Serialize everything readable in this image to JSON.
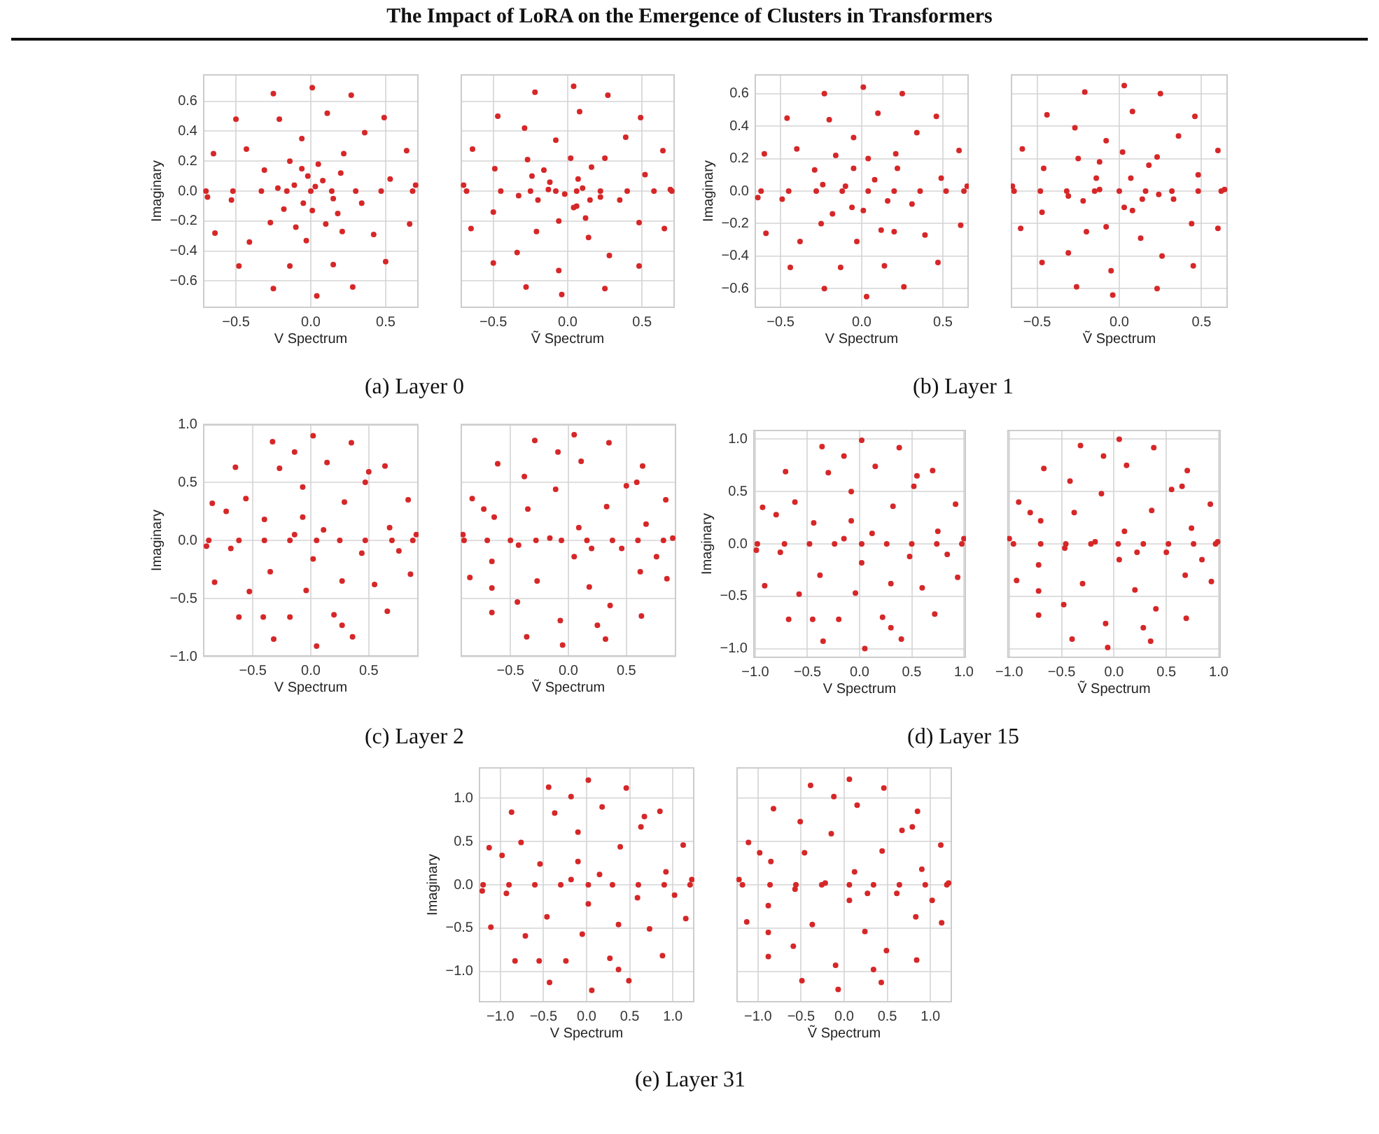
{
  "chart_data": [
    {
      "type": "scatter",
      "title": "The Impact of LoRA on the Emergence of Clusters in Transformers",
      "xlabel": "V Spectrum",
      "ylabel": "Imaginary",
      "annotations": [
        "(a) Layer 0"
      ],
      "color": "#d62728",
      "marker": "circle",
      "grid": true,
      "xlim": [
        -0.72,
        0.72
      ],
      "ylim": [
        -0.78,
        0.78
      ],
      "xticks": [
        {
          "value": -0.5,
          "label": "−0.5"
        },
        {
          "value": 0,
          "label": "0.0"
        },
        {
          "value": 0.5,
          "label": "0.5"
        }
      ],
      "yticks": [
        {
          "value": -0.6,
          "label": "−0.6"
        },
        {
          "value": -0.4,
          "label": "−0.4"
        },
        {
          "value": -0.2,
          "label": "−0.2"
        },
        {
          "value": 0,
          "label": "0.0"
        },
        0.2,
        0.4,
        0.6
      ],
      "x": [
        0.7,
        0.64,
        0.49,
        0.27,
        0.01,
        -0.25,
        -0.5,
        -0.65,
        -0.69,
        -0.64,
        -0.48,
        -0.25,
        0.04,
        0.28,
        0.5,
        0.66,
        0.53,
        0.36,
        0.11,
        -0.21,
        -0.43,
        -0.53,
        -0.41,
        -0.14,
        0.15,
        0.42,
        0.34,
        0.22,
        -0.06,
        -0.31,
        -0.27,
        -0.03,
        0.21,
        0.08,
        -0.11,
        0.01,
        -0.06,
        0.15,
        -0.05,
        0.05,
        -0.18,
        0.2,
        -0.14,
        0.1,
        -0.22,
        0.03,
        0.18,
        -0.02,
        -0.1,
        -0.7,
        -0.52,
        -0.33,
        -0.16,
        0.0,
        0.14,
        0.3,
        0.47,
        0.68
      ],
      "values": [
        0.04,
        0.27,
        0.49,
        0.64,
        0.69,
        0.65,
        0.48,
        0.25,
        -0.04,
        -0.28,
        -0.5,
        -0.65,
        -0.7,
        -0.64,
        -0.47,
        -0.22,
        0.08,
        0.39,
        0.52,
        0.48,
        0.28,
        -0.06,
        -0.34,
        -0.5,
        -0.49,
        -0.29,
        -0.08,
        0.25,
        0.35,
        0.14,
        -0.21,
        -0.33,
        -0.27,
        0.07,
        0.04,
        -0.13,
        0.15,
        -0.05,
        -0.08,
        0.18,
        -0.12,
        0.12,
        0.2,
        -0.22,
        0.02,
        0.03,
        -0.15,
        0.1,
        -0.24,
        0,
        0,
        0,
        0,
        0,
        0,
        0,
        0,
        0
      ]
    },
    {
      "type": "scatter",
      "xlabel": "Ṽ Spectrum",
      "tick_labels": "x",
      "color": "#d62728",
      "marker": "circle",
      "grid": true,
      "xlim": [
        -0.72,
        0.72
      ],
      "ylim": [
        -0.78,
        0.78
      ],
      "xticks": [
        {
          "value": -0.5,
          "label": "−0.5"
        },
        {
          "value": 0,
          "label": "0.0"
        },
        {
          "value": 0.5,
          "label": "0.5"
        }
      ],
      "yticks": [
        -0.6,
        -0.4,
        -0.2,
        0,
        0.2,
        0.4,
        0.6
      ],
      "x": [
        0.04,
        0.27,
        0.49,
        0.64,
        0.69,
        0.65,
        0.48,
        0.25,
        -0.04,
        -0.28,
        -0.5,
        -0.65,
        -0.7,
        -0.64,
        -0.47,
        -0.22,
        0.08,
        0.39,
        0.52,
        0.48,
        0.28,
        -0.06,
        -0.34,
        -0.5,
        -0.49,
        -0.29,
        -0.08,
        0.25,
        0.35,
        0.14,
        -0.21,
        -0.33,
        -0.27,
        0.07,
        0.04,
        -0.13,
        0.15,
        -0.12,
        0.06,
        0.16,
        -0.2,
        0.02,
        -0.06,
        0.22,
        -0.16,
        0.1,
        -0.02,
        0.12,
        -0.24,
        -0.68,
        -0.45,
        -0.25,
        -0.08,
        0.06,
        0.22,
        0.4,
        0.58,
        0.7
      ],
      "values": [
        0.7,
        0.64,
        0.49,
        0.27,
        0.01,
        -0.25,
        -0.5,
        -0.65,
        -0.69,
        -0.64,
        -0.48,
        -0.25,
        0.04,
        0.28,
        0.5,
        0.66,
        0.53,
        0.36,
        0.11,
        -0.21,
        -0.43,
        -0.53,
        -0.41,
        -0.14,
        0.15,
        0.42,
        0.34,
        0.22,
        -0.06,
        -0.31,
        -0.27,
        -0.03,
        0.21,
        0.08,
        -0.11,
        0.01,
        -0.06,
        0.06,
        -0.1,
        0.16,
        -0.06,
        0.22,
        -0.2,
        -0.04,
        0.14,
        0.02,
        -0.02,
        -0.18,
        0.1,
        0,
        0,
        0,
        0,
        0,
        0,
        0,
        0,
        0
      ]
    },
    {
      "type": "scatter",
      "xlabel": "V Spectrum",
      "ylabel": "Imaginary",
      "annotations": [
        "(b) Layer 1"
      ],
      "color": "#d62728",
      "marker": "circle",
      "grid": true,
      "xlim": [
        -0.66,
        0.66
      ],
      "ylim": [
        -0.72,
        0.72
      ],
      "xticks": [
        {
          "value": -0.5,
          "label": "−0.5"
        },
        {
          "value": 0,
          "label": "0.0"
        },
        {
          "value": 0.5,
          "label": "0.5"
        }
      ],
      "yticks": [
        {
          "value": -0.6,
          "label": "−0.6"
        },
        {
          "value": -0.4,
          "label": "−0.4"
        },
        {
          "value": -0.2,
          "label": "−0.2"
        },
        {
          "value": 0,
          "label": "0.0"
        },
        0.2,
        0.4,
        0.6
      ],
      "x": [
        0.65,
        0.6,
        0.46,
        0.25,
        0.01,
        -0.23,
        -0.46,
        -0.6,
        -0.64,
        -0.59,
        -0.44,
        -0.23,
        0.03,
        0.26,
        0.47,
        0.61,
        0.49,
        0.34,
        0.1,
        -0.2,
        -0.4,
        -0.49,
        -0.38,
        -0.13,
        0.14,
        0.39,
        0.31,
        0.21,
        -0.05,
        -0.29,
        -0.25,
        -0.03,
        0.2,
        0.08,
        -0.1,
        0.01,
        -0.05,
        0.16,
        -0.06,
        0.04,
        -0.18,
        0.22,
        -0.16,
        0.12,
        -0.24,
        -0.62,
        -0.45,
        -0.28,
        -0.12,
        0.04,
        0.2,
        0.36,
        0.52,
        0.63
      ],
      "values": [
        0.03,
        0.25,
        0.46,
        0.6,
        0.64,
        0.6,
        0.45,
        0.23,
        -0.04,
        -0.26,
        -0.47,
        -0.6,
        -0.65,
        -0.59,
        -0.44,
        -0.21,
        0.08,
        0.36,
        0.48,
        0.44,
        0.26,
        -0.05,
        -0.31,
        -0.47,
        -0.46,
        -0.27,
        -0.08,
        0.23,
        0.33,
        0.13,
        -0.2,
        -0.31,
        -0.25,
        0.07,
        0.03,
        -0.12,
        0.14,
        -0.06,
        -0.1,
        0.2,
        -0.14,
        0.14,
        0.22,
        -0.24,
        0.04,
        0,
        0,
        0,
        0,
        0,
        0,
        0,
        0,
        0
      ]
    },
    {
      "type": "scatter",
      "xlabel": "Ṽ Spectrum",
      "tick_labels": "x",
      "color": "#d62728",
      "marker": "circle",
      "grid": true,
      "xlim": [
        -0.66,
        0.66
      ],
      "ylim": [
        -0.72,
        0.72
      ],
      "xticks": [
        {
          "value": -0.5,
          "label": "−0.5"
        },
        {
          "value": 0,
          "label": "0.0"
        },
        {
          "value": 0.5,
          "label": "0.5"
        }
      ],
      "yticks": [
        -0.6,
        -0.4,
        -0.2,
        0,
        0.2,
        0.4,
        0.6
      ],
      "x": [
        0.03,
        0.25,
        0.46,
        0.6,
        0.64,
        0.6,
        0.45,
        0.23,
        -0.04,
        -0.26,
        -0.47,
        -0.6,
        -0.65,
        -0.59,
        -0.44,
        -0.21,
        0.08,
        0.36,
        0.48,
        0.44,
        0.26,
        -0.05,
        -0.31,
        -0.47,
        -0.46,
        -0.27,
        -0.08,
        0.23,
        0.33,
        0.13,
        -0.2,
        -0.31,
        -0.25,
        0.07,
        0.03,
        -0.12,
        0.14,
        -0.14,
        0.08,
        0.18,
        -0.22,
        0.02,
        -0.08,
        0.24,
        -0.12,
        -0.64,
        -0.48,
        -0.32,
        -0.15,
        0.0,
        0.16,
        0.32,
        0.48,
        0.62
      ],
      "values": [
        0.65,
        0.6,
        0.46,
        0.25,
        0.01,
        -0.23,
        -0.46,
        -0.6,
        -0.64,
        -0.59,
        -0.44,
        -0.23,
        0.03,
        0.26,
        0.47,
        0.61,
        0.49,
        0.34,
        0.1,
        -0.2,
        -0.4,
        -0.49,
        -0.38,
        -0.13,
        0.14,
        0.39,
        0.31,
        0.21,
        -0.05,
        -0.29,
        -0.25,
        -0.03,
        0.2,
        0.08,
        -0.1,
        0.01,
        -0.05,
        0.08,
        -0.12,
        0.16,
        -0.06,
        0.24,
        -0.22,
        -0.02,
        0.18,
        0,
        0,
        0,
        0,
        0,
        0,
        0,
        0,
        0
      ]
    },
    {
      "type": "scatter",
      "xlabel": "V Spectrum",
      "ylabel": "Imaginary",
      "annotations": [
        "(c) Layer 2"
      ],
      "color": "#d62728",
      "marker": "circle",
      "grid": true,
      "xlim": [
        -0.93,
        0.93
      ],
      "ylim": [
        -1.0,
        1.0
      ],
      "xticks": [
        {
          "value": -0.5,
          "label": "−0.5"
        },
        {
          "value": 0,
          "label": "0.0"
        },
        {
          "value": 0.5,
          "label": "0.5"
        }
      ],
      "yticks": [
        {
          "value": -1,
          "label": "−1.0"
        },
        {
          "value": -0.5,
          "label": "−0.5"
        },
        {
          "value": 0,
          "label": "0.0"
        },
        0.5,
        {
          "value": 1,
          "label": "1.0"
        }
      ],
      "x": [
        0.91,
        0.84,
        0.64,
        0.35,
        0.02,
        -0.33,
        -0.65,
        -0.85,
        -0.9,
        -0.83,
        -0.62,
        -0.32,
        0.05,
        0.36,
        0.66,
        0.86,
        0.68,
        0.47,
        0.14,
        -0.27,
        -0.56,
        -0.69,
        -0.53,
        -0.18,
        0.2,
        0.55,
        0.44,
        0.29,
        -0.07,
        -0.4,
        -0.35,
        -0.04,
        0.27,
        0.11,
        -0.14,
        0.02,
        -0.07,
        0.5,
        -0.14,
        -0.73,
        -0.41,
        0.27,
        0.76,
        -0.88,
        -0.62,
        -0.4,
        -0.18,
        0.05,
        0.25,
        0.47,
        0.7,
        0.88
      ],
      "values": [
        0.05,
        0.35,
        0.64,
        0.84,
        0.9,
        0.85,
        0.63,
        0.32,
        -0.05,
        -0.36,
        -0.66,
        -0.85,
        -0.91,
        -0.83,
        -0.61,
        -0.29,
        0.11,
        0.5,
        0.67,
        0.62,
        0.36,
        -0.07,
        -0.44,
        -0.66,
        -0.64,
        -0.38,
        -0.11,
        0.33,
        0.46,
        0.18,
        -0.27,
        -0.43,
        -0.35,
        0.09,
        0.05,
        -0.16,
        0.2,
        0.59,
        0.76,
        0.25,
        -0.66,
        -0.73,
        -0.09,
        0,
        0,
        0,
        0,
        0,
        0,
        0,
        0,
        0
      ]
    },
    {
      "type": "scatter",
      "xlabel": "Ṽ Spectrum",
      "tick_labels": "x",
      "color": "#d62728",
      "marker": "circle",
      "grid": true,
      "xlim": [
        -0.93,
        0.93
      ],
      "ylim": [
        -1.0,
        1.0
      ],
      "xticks": [
        {
          "value": -0.5,
          "label": "−0.5"
        },
        {
          "value": 0,
          "label": "0.0"
        },
        {
          "value": 0.5,
          "label": "0.5"
        }
      ],
      "yticks": [
        -1,
        -0.5,
        0,
        0.5,
        1
      ],
      "x": [
        0.05,
        0.35,
        0.64,
        0.84,
        0.9,
        0.85,
        0.63,
        0.32,
        -0.05,
        -0.36,
        -0.66,
        -0.85,
        -0.91,
        -0.83,
        -0.61,
        -0.29,
        0.11,
        0.5,
        0.67,
        0.62,
        0.36,
        -0.07,
        -0.44,
        -0.66,
        -0.64,
        -0.38,
        -0.11,
        0.33,
        0.46,
        0.18,
        -0.27,
        -0.43,
        -0.35,
        0.09,
        0.05,
        -0.16,
        0.2,
        0.59,
        0.76,
        0.25,
        -0.66,
        -0.73,
        -0.09,
        -0.9,
        -0.7,
        -0.5,
        -0.28,
        -0.06,
        0.16,
        0.38,
        0.6,
        0.82
      ],
      "values": [
        0.91,
        0.84,
        0.64,
        0.35,
        0.02,
        -0.33,
        -0.65,
        -0.85,
        -0.9,
        -0.83,
        -0.62,
        -0.32,
        0.05,
        0.36,
        0.66,
        0.86,
        0.68,
        0.47,
        0.14,
        -0.27,
        -0.56,
        -0.69,
        -0.53,
        -0.18,
        0.2,
        0.55,
        0.44,
        0.29,
        -0.07,
        -0.4,
        -0.35,
        -0.04,
        0.27,
        0.11,
        -0.14,
        0.02,
        -0.07,
        0.5,
        -0.14,
        -0.73,
        -0.41,
        0.27,
        0.76,
        0,
        0,
        0,
        0,
        0,
        0,
        0,
        0,
        0
      ]
    },
    {
      "type": "scatter",
      "xlabel": "V Spectrum",
      "ylabel": "Imaginary",
      "annotations": [
        "(d) Layer 15"
      ],
      "color": "#d62728",
      "marker": "circle",
      "grid": true,
      "xlim": [
        -1.02,
        1.02
      ],
      "ylim": [
        -1.09,
        1.09
      ],
      "xticks": [
        {
          "value": -1,
          "label": "−1.0"
        },
        {
          "value": -0.5,
          "label": "−0.5"
        },
        {
          "value": 0,
          "label": "0.0"
        },
        {
          "value": 0.5,
          "label": "0.5"
        },
        {
          "value": 1,
          "label": "1.0"
        }
      ],
      "yticks": [
        {
          "value": -1,
          "label": "−1.0"
        },
        {
          "value": -0.5,
          "label": "−0.5"
        },
        {
          "value": 0,
          "label": "0.0"
        },
        0.5,
        {
          "value": 1,
          "label": "1.0"
        }
      ],
      "x": [
        1.0,
        0.92,
        0.7,
        0.38,
        0.02,
        -0.36,
        -0.71,
        -0.93,
        -0.99,
        -0.91,
        -0.68,
        -0.35,
        0.05,
        0.4,
        0.72,
        0.94,
        0.75,
        0.52,
        0.15,
        -0.3,
        -0.62,
        -0.76,
        -0.58,
        -0.2,
        0.22,
        0.6,
        0.48,
        0.32,
        -0.08,
        -0.44,
        -0.38,
        -0.04,
        0.3,
        0.12,
        -0.15,
        0.02,
        -0.08,
        0.55,
        -0.15,
        -0.8,
        -0.45,
        0.3,
        0.84,
        -0.98,
        -0.72,
        -0.48,
        -0.24,
        0.02,
        0.26,
        0.5,
        0.74,
        0.98
      ],
      "values": [
        0.05,
        0.38,
        0.7,
        0.92,
        0.99,
        0.93,
        0.69,
        0.35,
        -0.06,
        -0.4,
        -0.72,
        -0.93,
        -1.0,
        -0.91,
        -0.67,
        -0.32,
        0.12,
        0.55,
        0.74,
        0.68,
        0.4,
        -0.08,
        -0.48,
        -0.72,
        -0.7,
        -0.42,
        -0.12,
        0.36,
        0.5,
        0.2,
        -0.3,
        -0.47,
        -0.38,
        0.1,
        0.05,
        -0.18,
        0.22,
        0.65,
        0.84,
        0.28,
        -0.72,
        -0.8,
        -0.1,
        0,
        0,
        0,
        0,
        0,
        0,
        0,
        0,
        0
      ]
    },
    {
      "type": "scatter",
      "xlabel": "Ṽ Spectrum",
      "tick_labels": "x",
      "color": "#d62728",
      "marker": "circle",
      "grid": true,
      "xlim": [
        -1.02,
        1.02
      ],
      "ylim": [
        -1.09,
        1.09
      ],
      "xticks": [
        {
          "value": -1,
          "label": "−1.0"
        },
        {
          "value": -0.5,
          "label": "−0.5"
        },
        {
          "value": 0,
          "label": "0.0"
        },
        {
          "value": 0.5,
          "label": "0.5"
        },
        {
          "value": 1,
          "label": "1.0"
        }
      ],
      "yticks": [
        -1,
        -0.5,
        0,
        0.5,
        1
      ],
      "x": [
        0.05,
        0.38,
        0.7,
        0.92,
        0.99,
        0.93,
        0.69,
        0.35,
        -0.06,
        -0.4,
        -0.72,
        -0.93,
        -1.0,
        -0.91,
        -0.67,
        -0.32,
        0.12,
        0.55,
        0.74,
        0.68,
        0.4,
        -0.08,
        -0.48,
        -0.72,
        -0.7,
        -0.42,
        -0.12,
        0.36,
        0.5,
        0.2,
        -0.3,
        -0.47,
        -0.38,
        0.1,
        0.05,
        -0.18,
        0.22,
        0.65,
        0.84,
        0.28,
        -0.72,
        -0.8,
        -0.1,
        -0.96,
        -0.7,
        -0.46,
        -0.22,
        0.04,
        0.28,
        0.52,
        0.76,
        0.97
      ],
      "values": [
        1.0,
        0.92,
        0.7,
        0.38,
        0.02,
        -0.36,
        -0.71,
        -0.93,
        -0.99,
        -0.91,
        -0.68,
        -0.35,
        0.05,
        0.4,
        0.72,
        0.94,
        0.75,
        0.52,
        0.15,
        -0.3,
        -0.62,
        -0.76,
        -0.58,
        -0.2,
        0.22,
        0.6,
        0.48,
        0.32,
        -0.08,
        -0.44,
        -0.38,
        -0.04,
        0.3,
        0.12,
        -0.15,
        0.02,
        -0.08,
        0.55,
        -0.15,
        -0.8,
        -0.45,
        0.3,
        0.84,
        0,
        0,
        0,
        0,
        0,
        0,
        0,
        0,
        0
      ]
    },
    {
      "type": "scatter",
      "xlabel": "V Spectrum",
      "ylabel": "Imaginary",
      "annotations": [
        "(e) Layer 31"
      ],
      "color": "#d62728",
      "marker": "circle",
      "grid": true,
      "xlim": [
        -1.25,
        1.25
      ],
      "ylim": [
        -1.36,
        1.36
      ],
      "xticks": [
        {
          "value": -1,
          "label": "−1.0"
        },
        {
          "value": -0.5,
          "label": "−0.5"
        },
        {
          "value": 0,
          "label": "0.0"
        },
        {
          "value": 0.5,
          "label": "0.5"
        },
        {
          "value": 1,
          "label": "1.0"
        }
      ],
      "yticks": [
        {
          "value": -1,
          "label": "−1.0"
        },
        {
          "value": -0.5,
          "label": "−0.5"
        },
        {
          "value": 0,
          "label": "0.0"
        },
        0.5,
        {
          "value": 1,
          "label": "1.0"
        }
      ],
      "x": [
        1.22,
        1.12,
        0.85,
        0.46,
        0.02,
        -0.44,
        -0.87,
        -1.13,
        -1.21,
        -1.11,
        -0.83,
        -0.43,
        0.06,
        0.49,
        0.88,
        1.15,
        0.92,
        0.63,
        0.18,
        -0.37,
        -0.76,
        -0.93,
        -0.71,
        -0.24,
        0.27,
        0.73,
        0.59,
        0.39,
        -0.1,
        -0.54,
        -0.46,
        -0.05,
        0.37,
        0.15,
        -0.18,
        0.02,
        -0.1,
        0.67,
        -0.18,
        -0.98,
        -0.55,
        0.37,
        1.02,
        -1.2,
        -0.9,
        -0.6,
        -0.3,
        0.02,
        0.3,
        0.6,
        0.9,
        1.2
      ],
      "values": [
        0.06,
        0.46,
        0.85,
        1.12,
        1.21,
        1.13,
        0.84,
        0.43,
        -0.07,
        -0.49,
        -0.88,
        -1.13,
        -1.22,
        -1.11,
        -0.82,
        -0.39,
        0.15,
        0.67,
        0.9,
        0.83,
        0.49,
        -0.1,
        -0.59,
        -0.88,
        -0.85,
        -0.51,
        -0.15,
        0.44,
        0.61,
        0.24,
        -0.37,
        -0.57,
        -0.46,
        0.12,
        0.06,
        -0.22,
        0.27,
        0.79,
        1.02,
        0.34,
        -0.88,
        -0.98,
        -0.12,
        0,
        0,
        0,
        0,
        0,
        0,
        0,
        0,
        0
      ]
    },
    {
      "type": "scatter",
      "xlabel": "Ṽ Spectrum",
      "tick_labels": "x",
      "color": "#d62728",
      "marker": "circle",
      "grid": true,
      "xlim": [
        -1.25,
        1.25
      ],
      "ylim": [
        -1.36,
        1.36
      ],
      "xticks": [
        {
          "value": -1,
          "label": "−1.0"
        },
        {
          "value": -0.5,
          "label": "−0.5"
        },
        {
          "value": 0,
          "label": "0.0"
        },
        {
          "value": 0.5,
          "label": "0.5"
        },
        {
          "value": 1,
          "label": "1.0"
        }
      ],
      "yticks": [
        -1,
        -0.5,
        0,
        0.5,
        1
      ],
      "x": [
        0.06,
        0.46,
        0.85,
        1.12,
        1.21,
        1.13,
        0.84,
        0.43,
        -0.07,
        -0.49,
        -0.88,
        -1.13,
        -1.22,
        -1.11,
        -0.82,
        -0.39,
        0.15,
        0.67,
        0.9,
        0.83,
        0.49,
        -0.1,
        -0.59,
        -0.88,
        -0.85,
        -0.51,
        -0.15,
        0.44,
        0.61,
        0.24,
        -0.37,
        -0.57,
        -0.46,
        0.12,
        0.06,
        -0.22,
        0.27,
        0.79,
        1.02,
        0.34,
        -0.88,
        -0.98,
        -0.12,
        -1.18,
        -0.86,
        -0.56,
        -0.26,
        0.06,
        0.34,
        0.64,
        0.94,
        1.19
      ],
      "values": [
        1.22,
        1.12,
        0.85,
        0.46,
        0.02,
        -0.44,
        -0.87,
        -1.13,
        -1.21,
        -1.11,
        -0.83,
        -0.43,
        0.06,
        0.49,
        0.88,
        1.15,
        0.92,
        0.63,
        0.18,
        -0.37,
        -0.76,
        -0.93,
        -0.71,
        -0.24,
        0.27,
        0.73,
        0.59,
        0.39,
        -0.1,
        -0.54,
        -0.46,
        -0.05,
        0.37,
        0.15,
        -0.18,
        0.02,
        -0.1,
        0.67,
        -0.18,
        -0.98,
        -0.55,
        0.37,
        1.02,
        0,
        0,
        0,
        0,
        0,
        0,
        0,
        0,
        0
      ]
    }
  ]
}
